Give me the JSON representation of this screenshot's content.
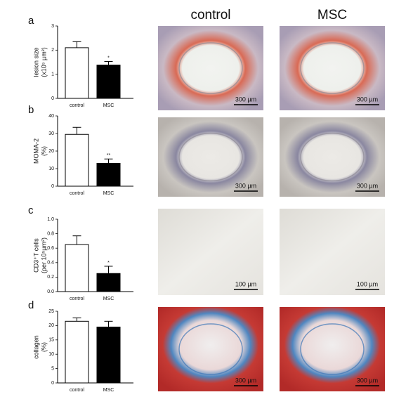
{
  "chart_data": [
    {
      "type": "bar",
      "label": "a",
      "ylabel": [
        "lesion size",
        "(x10⁵ µm²)"
      ],
      "categories": [
        "control",
        "MSC"
      ],
      "values": [
        2.1,
        1.38
      ],
      "errors": [
        0.25,
        0.15
      ],
      "colors": [
        "#ffffff",
        "#000000"
      ],
      "annotation": "*",
      "ylim": [
        0,
        3
      ],
      "yticks": [
        0,
        1,
        2,
        3
      ]
    },
    {
      "type": "bar",
      "label": "b",
      "ylabel": [
        "MOMA-2",
        "(%)"
      ],
      "categories": [
        "control",
        "MSC"
      ],
      "values": [
        29.5,
        13
      ],
      "errors": [
        4,
        2.5
      ],
      "colors": [
        "#ffffff",
        "#000000"
      ],
      "annotation": "**",
      "ylim": [
        0,
        40
      ],
      "yticks": [
        0,
        10,
        20,
        30,
        40
      ]
    },
    {
      "type": "bar",
      "label": "c",
      "ylabel": [
        "CD3⁺T cells",
        "(per 10⁵µm²)"
      ],
      "categories": [
        "control",
        "MSC"
      ],
      "values": [
        0.65,
        0.25
      ],
      "errors": [
        0.12,
        0.1
      ],
      "colors": [
        "#ffffff",
        "#000000"
      ],
      "annotation": "*",
      "ylim": [
        0,
        1
      ],
      "yticks": [
        {
          "value": 0,
          "label": "0.0"
        },
        0.2,
        0.4,
        0.6,
        0.8,
        {
          "value": 1,
          "label": "1.0"
        }
      ]
    },
    {
      "type": "bar",
      "label": "d",
      "ylabel": [
        "collagen",
        "(%)"
      ],
      "categories": [
        "control",
        "MSC"
      ],
      "values": [
        21.5,
        19.5
      ],
      "errors": [
        1.2,
        2
      ],
      "colors": [
        "#ffffff",
        "#000000"
      ],
      "ylim": [
        0,
        25
      ],
      "yticks": [
        0,
        5,
        10,
        15,
        20,
        25
      ]
    }
  ],
  "micrographs": {
    "columns": [
      "control",
      "MSC"
    ],
    "rows": [
      {
        "scale_bars": [
          "300 µm",
          "300 µm"
        ]
      },
      {
        "scale_bars": [
          "300 µm",
          "300 µm"
        ]
      },
      {
        "scale_bars": [
          "100 µm",
          "100 µm"
        ]
      },
      {
        "scale_bars": [
          "300 µm",
          "300 µm"
        ]
      }
    ]
  }
}
